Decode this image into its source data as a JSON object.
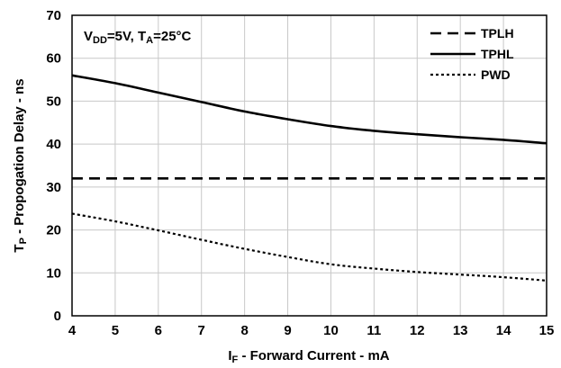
{
  "chart_data": {
    "type": "line",
    "title": "",
    "xlabel": "I",
    "xlabel_sub": "F",
    "xlabel_rest": " - Forward Current - mA",
    "ylabel": "T",
    "ylabel_sub": "P",
    "ylabel_rest": " - Propogation Delay - ns",
    "xlim": [
      4,
      15
    ],
    "ylim": [
      0,
      70
    ],
    "xticks": [
      4,
      5,
      6,
      7,
      8,
      9,
      10,
      11,
      12,
      13,
      14,
      15
    ],
    "yticks": [
      0,
      10,
      20,
      30,
      40,
      50,
      60,
      70
    ],
    "grid": true,
    "legend_position": "top-right",
    "annotation": {
      "v": "V",
      "v_sub": "DD",
      "v_rest": "=5V, T",
      "t_sub": "A",
      "t_rest": "=25°C"
    },
    "x": [
      4,
      5,
      6,
      7,
      8,
      9,
      10,
      11,
      12,
      13,
      14,
      15
    ],
    "series": [
      {
        "name": "TPLH",
        "style": "dashed",
        "values": [
          32,
          32,
          32,
          32,
          32,
          32,
          32,
          32,
          32,
          32,
          32,
          32
        ]
      },
      {
        "name": "TPHL",
        "style": "solid",
        "values": [
          56,
          54.2,
          52,
          49.8,
          47.6,
          45.8,
          44.2,
          43.1,
          42.3,
          41.6,
          41,
          40.2
        ]
      },
      {
        "name": "PWD",
        "style": "dotted",
        "values": [
          23.8,
          22,
          19.9,
          17.7,
          15.6,
          13.7,
          12,
          11,
          10.2,
          9.6,
          9,
          8.2
        ]
      }
    ]
  }
}
